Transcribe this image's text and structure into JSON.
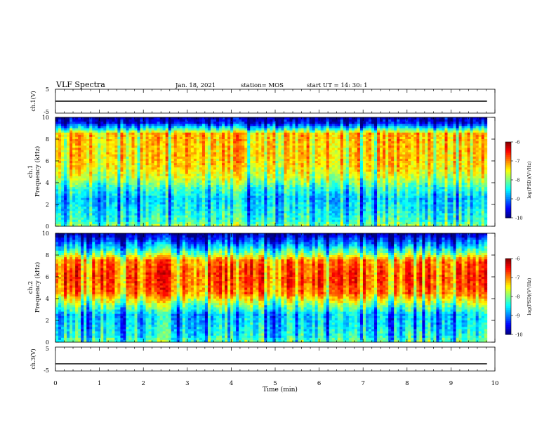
{
  "header": {
    "title": "VLF Spectra",
    "date": "Jan. 18, 2021",
    "station": "station= MOS",
    "start_ut": "start UT =  14: 30: 1"
  },
  "chart_data": [
    {
      "type": "line",
      "name_label": "ch.1(V)",
      "ylim": [
        -5,
        5
      ],
      "ytick_labels": [
        "5",
        "-5"
      ],
      "x": [
        0,
        10
      ],
      "values": [
        0,
        0
      ]
    },
    {
      "type": "heatmap",
      "ylabel": "ch.1\nFrequency (kHz)",
      "ylabel_lines": [
        "ch.1",
        "Frequency (kHz)"
      ],
      "ylim": [
        0,
        10
      ],
      "ytick_labels": [
        "0",
        "2",
        "4",
        "6",
        "8",
        "10"
      ],
      "colorbar": {
        "label": "log(PSD)(V²/Hz)",
        "range": [
          -10,
          -6
        ],
        "tick_labels": [
          "-6",
          "-7",
          "-8",
          "-9",
          "-10"
        ]
      },
      "profile": {
        "freq_khz": [
          0,
          0.5,
          1.5,
          2.5,
          3.5,
          4.5,
          5.5,
          6.5,
          7.5,
          8.5,
          9.0,
          9.5,
          10
        ],
        "log_psd": [
          -7.8,
          -8.2,
          -8.4,
          -8.6,
          -8.2,
          -7.6,
          -7.3,
          -7.2,
          -7.2,
          -7.1,
          -8.4,
          -9.4,
          -9.8
        ]
      }
    },
    {
      "type": "heatmap",
      "ylabel": "ch.2\nFrequency (kHz)",
      "ylabel_lines": [
        "ch.2",
        "Frequency (kHz)"
      ],
      "ylim": [
        0,
        10
      ],
      "ytick_labels": [
        "0",
        "2",
        "4",
        "6",
        "8",
        "10"
      ],
      "colorbar": {
        "label": "log(PSD)(V²/Hz)",
        "range": [
          -10,
          -6
        ],
        "tick_labels": [
          "-6",
          "-7",
          "-8",
          "-9",
          "-10"
        ]
      },
      "profile": {
        "freq_khz": [
          0,
          0.5,
          1.5,
          2.5,
          3.5,
          4.5,
          5.5,
          6.5,
          7.5,
          8.0,
          8.5,
          9.0,
          9.5,
          10
        ],
        "log_psd": [
          -8.0,
          -8.3,
          -8.5,
          -8.6,
          -7.8,
          -6.9,
          -6.7,
          -6.7,
          -6.9,
          -7.7,
          -8.3,
          -8.8,
          -9.3,
          -9.8
        ]
      }
    },
    {
      "type": "line",
      "name_label": "ch.3(V)",
      "ylim": [
        -5,
        5
      ],
      "ytick_labels": [
        "5",
        "-5"
      ],
      "x": [
        0,
        10
      ],
      "values": [
        -2,
        -2
      ]
    }
  ],
  "xaxis": {
    "label": "Time (min)",
    "xlim": [
      0,
      10
    ],
    "tick_labels": [
      "0",
      "1",
      "2",
      "3",
      "4",
      "5",
      "6",
      "7",
      "8",
      "9",
      "10"
    ],
    "data_end_min": 9.82
  }
}
